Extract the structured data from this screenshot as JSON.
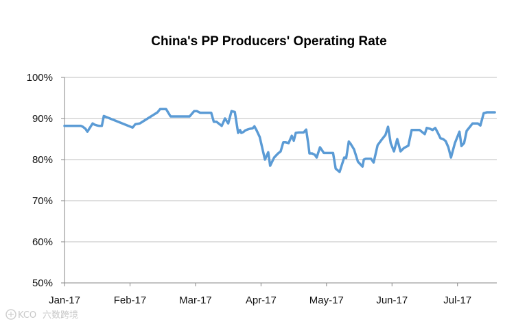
{
  "chart_data": {
    "type": "line",
    "title": "China's PP Producers' Operating Rate",
    "xlabel": "",
    "ylabel": "",
    "ylim": [
      50,
      100
    ],
    "yticks": [
      "50%",
      "60%",
      "70%",
      "80%",
      "90%",
      "100%"
    ],
    "yticks_values": [
      50,
      60,
      70,
      80,
      90,
      100
    ],
    "xlim": [
      0,
      6.6
    ],
    "xticks": [
      "Jan-17",
      "Feb-17",
      "Mar-17",
      "Apr-17",
      "May-17",
      "Jun-17",
      "Jul-17"
    ],
    "xticks_values": [
      0,
      1,
      2,
      3,
      4,
      5,
      6
    ],
    "grid": "horizontal",
    "legend": "none",
    "series": [
      {
        "name": "Operating Rate",
        "color": "#5b9bd5",
        "x": [
          0,
          0.25,
          0.28,
          0.32,
          0.35,
          0.43,
          0.46,
          0.5,
          0.53,
          0.57,
          0.6,
          1.04,
          1.08,
          1.15,
          1.18,
          1.42,
          1.46,
          1.5,
          1.55,
          1.62,
          1.66,
          1.75,
          1.79,
          1.87,
          1.91,
          1.98,
          2.02,
          2.07,
          2.12,
          2.16,
          2.22,
          2.24,
          2.28,
          2.32,
          2.4,
          2.45,
          2.5,
          2.55,
          2.6,
          2.65,
          2.68,
          2.7,
          2.73,
          2.76,
          2.79,
          2.83,
          2.87,
          2.9,
          2.93,
          2.98,
          3.06,
          3.11,
          3.14,
          3.2,
          3.26,
          3.3,
          3.34,
          3.38,
          3.42,
          3.47,
          3.5,
          3.53,
          3.58,
          3.65,
          3.69,
          3.72,
          3.74,
          3.78,
          3.82,
          3.85,
          3.9,
          3.96,
          4.01,
          4.06,
          4.1,
          4.14,
          4.2,
          4.27,
          4.3,
          4.34,
          4.37,
          4.42,
          4.48,
          4.55,
          4.57,
          4.6,
          4.64,
          4.68,
          4.72,
          4.78,
          4.84,
          4.9,
          4.94,
          4.98,
          5.03,
          5.08,
          5.13,
          5.18,
          5.25,
          5.3,
          5.34,
          5.38,
          5.42,
          5.5,
          5.53,
          5.58,
          5.62,
          5.66,
          5.7,
          5.74,
          5.78,
          5.82,
          5.86,
          5.9,
          5.96,
          6.03,
          6.06,
          6.1,
          6.14,
          6.19,
          6.23,
          6.27,
          6.31,
          6.35,
          6.4,
          6.45,
          6.48,
          6.53,
          6.57
        ],
        "values": [
          88.2,
          88.2,
          88.0,
          87.5,
          86.8,
          88.8,
          88.5,
          88.3,
          88.2,
          88.2,
          90.6,
          87.8,
          88.6,
          88.8,
          89.1,
          91.5,
          92.3,
          92.3,
          92.3,
          90.5,
          90.5,
          90.5,
          90.5,
          90.5,
          90.5,
          91.8,
          91.8,
          91.4,
          91.4,
          91.4,
          91.4,
          91.4,
          89.2,
          89.2,
          88.2,
          90.0,
          88.8,
          91.8,
          91.6,
          86.5,
          87.2,
          86.5,
          86.7,
          87.1,
          87.3,
          87.5,
          87.6,
          88.1,
          87.2,
          85.5,
          80.0,
          81.8,
          78.5,
          80.5,
          81.5,
          82.0,
          84.2,
          84.2,
          84.0,
          85.8,
          84.6,
          86.5,
          86.6,
          86.6,
          87.3,
          84.0,
          81.5,
          81.5,
          81.2,
          80.5,
          83.0,
          81.6,
          81.6,
          81.6,
          81.6,
          77.8,
          77.0,
          80.5,
          80.4,
          84.4,
          83.8,
          82.5,
          79.5,
          78.3,
          80.0,
          80.2,
          80.2,
          80.2,
          79.3,
          83.5,
          84.8,
          86.0,
          88.0,
          84.0,
          82.0,
          85.0,
          82.0,
          82.8,
          83.4,
          87.2,
          87.2,
          87.2,
          87.2,
          86.2,
          87.7,
          87.5,
          87.2,
          87.7,
          86.5,
          85.2,
          85.0,
          84.5,
          83.0,
          80.5,
          84.0,
          86.8,
          83.3,
          84.0,
          87.0,
          88.0,
          88.8,
          88.8,
          88.8,
          88.3,
          91.3,
          91.5,
          91.5,
          91.5,
          91.5
        ]
      }
    ]
  },
  "watermark": {
    "text": "六数跨境",
    "logo_text": "KCO"
  }
}
